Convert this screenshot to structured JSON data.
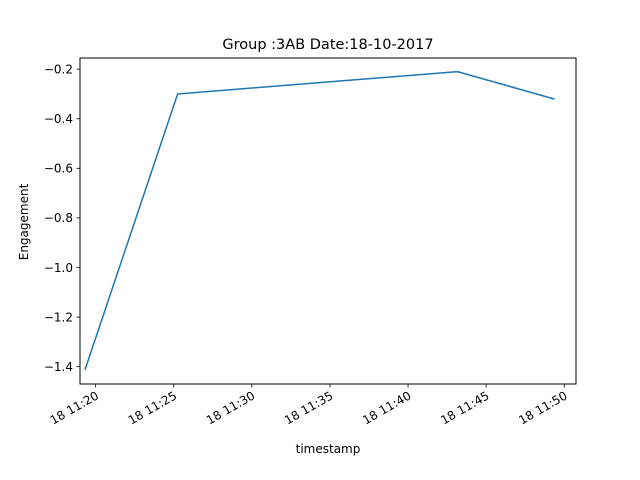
{
  "chart_data": {
    "type": "line",
    "title": "Group :3AB Date:18-10-2017",
    "xlabel": "timestamp",
    "ylabel": "Engagement",
    "x_ticks": [
      "18 11:20",
      "18 11:25",
      "18 11:30",
      "18 11:35",
      "18 11:40",
      "18 11:45",
      "18 11:50"
    ],
    "y_ticks": [
      "−1.4",
      "−1.2",
      "−1.0",
      "−0.8",
      "−0.6",
      "−0.4",
      "−0.2"
    ],
    "xlim": [
      "2017-10-18 11:19:00",
      "2017-10-18 11:50:45"
    ],
    "ylim": [
      -1.47,
      -0.155
    ],
    "grid": false,
    "color": "#1f77b4",
    "series": [
      {
        "x": [
          "2017-10-18 11:19:20",
          "2017-10-18 11:25:15",
          "2017-10-18 11:43:10",
          "2017-10-18 11:49:20"
        ],
        "y": [
          -1.41,
          -0.3,
          -0.21,
          -0.32
        ]
      }
    ]
  }
}
